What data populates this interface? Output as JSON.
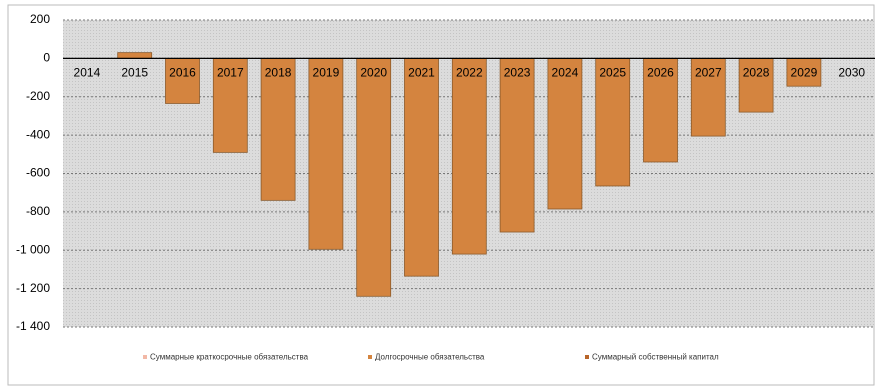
{
  "chart_data": {
    "type": "bar",
    "categories": [
      "2014",
      "2015",
      "2016",
      "2017",
      "2018",
      "2019",
      "2020",
      "2021",
      "2022",
      "2023",
      "2024",
      "2025",
      "2026",
      "2027",
      "2028",
      "2029",
      "2030"
    ],
    "series": [
      {
        "name": "Суммарные краткосрочные обязательства",
        "color": "#f2b8a6",
        "values": [
          null,
          null,
          null,
          null,
          null,
          null,
          null,
          null,
          null,
          null,
          null,
          null,
          null,
          null,
          null,
          null,
          null
        ]
      },
      {
        "name": "Долгосрочные обязательства",
        "color": "#d4843f",
        "values": [
          0,
          30,
          -235,
          -490,
          -740,
          -995,
          -1240,
          -1135,
          -1020,
          -905,
          -785,
          -665,
          -540,
          -405,
          -280,
          -145,
          0
        ]
      },
      {
        "name": "Суммарный собственный капитал",
        "color": "#b8652a",
        "values": [
          null,
          null,
          null,
          null,
          null,
          null,
          null,
          null,
          null,
          null,
          null,
          null,
          null,
          null,
          null,
          null,
          null
        ]
      }
    ],
    "ylim": [
      -1400,
      200
    ],
    "yticks": [
      200,
      0,
      -200,
      -400,
      -600,
      -800,
      {
        "value": -1000,
        "label": "-1 000"
      },
      {
        "value": -1200,
        "label": "-1 200"
      },
      {
        "value": -1400,
        "label": "-1 400"
      }
    ],
    "grid": true
  }
}
